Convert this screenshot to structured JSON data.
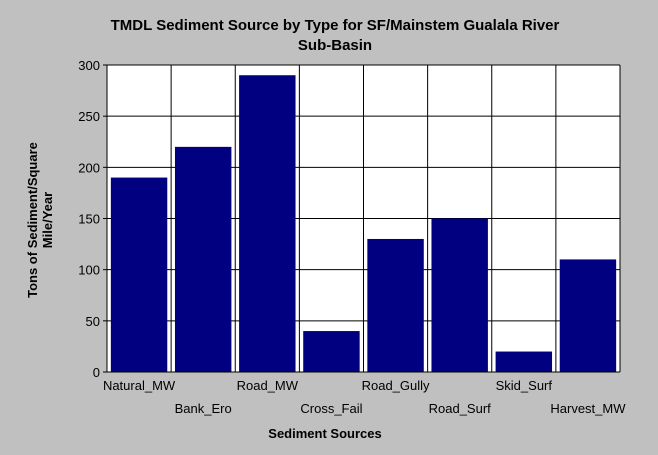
{
  "chart_data": {
    "type": "bar",
    "title": "TMDL Sediment Source by Type for SF/Mainstem Gualala River",
    "subtitle": "Sub-Basin",
    "xlabel": "Sediment Sources",
    "ylabel_line1": "Tons of Sediment/Square",
    "ylabel_line2": "Mile/Year",
    "categories": [
      "Natural_MW",
      "Bank_Ero",
      "Road_MW",
      "Cross_Fail",
      "Road_Gully",
      "Road_Surf",
      "Skid_Surf",
      "Harvest_MW"
    ],
    "values": [
      190,
      220,
      290,
      40,
      130,
      150,
      20,
      110
    ],
    "ylim": [
      0,
      300
    ],
    "yticks": [
      0,
      50,
      100,
      150,
      200,
      250,
      300
    ],
    "grid": true,
    "colors": {
      "background": "#c0c0c0",
      "plot_background": "#ffffff",
      "bar": "#000080",
      "grid": "#000000"
    }
  }
}
